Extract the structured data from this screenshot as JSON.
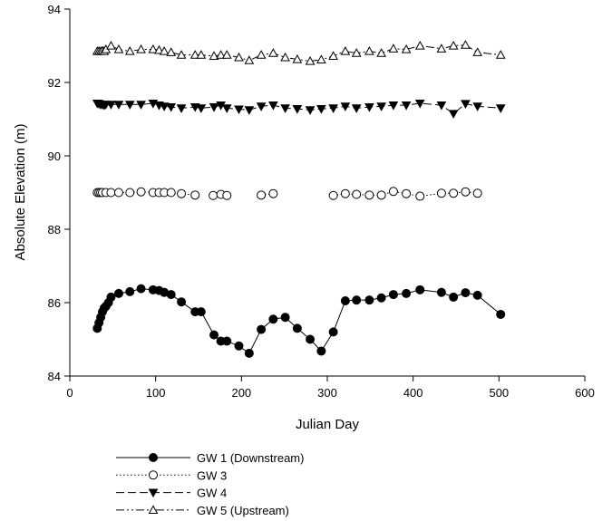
{
  "chart_data": {
    "type": "line",
    "x_label": "Julian Day",
    "y_label": "Absolute Elevation (m)",
    "xlim": [
      0,
      600
    ],
    "xticks": [
      0,
      100,
      200,
      300,
      400,
      500,
      600
    ],
    "ylim": [
      84,
      94
    ],
    "yticks": [
      84,
      86,
      88,
      90,
      92,
      94
    ],
    "series": [
      {
        "name": "GW 1 (Downstream)",
        "color": "#000000",
        "marker": "circle",
        "filled": true,
        "dash": "solid",
        "x": [
          32,
          34,
          36,
          38,
          40,
          42,
          45,
          48,
          57,
          70,
          83,
          97,
          104,
          110,
          118,
          130,
          146,
          153,
          168,
          176,
          183,
          197,
          209,
          223,
          237,
          251,
          265,
          280,
          293,
          307,
          321,
          334,
          349,
          363,
          377,
          392,
          408,
          433,
          447,
          461,
          475,
          502
        ],
        "values": [
          85.3,
          85.45,
          85.6,
          85.75,
          85.85,
          85.9,
          86.0,
          86.15,
          86.25,
          86.3,
          86.38,
          86.35,
          86.33,
          86.28,
          86.22,
          86.02,
          85.75,
          85.75,
          85.12,
          84.95,
          84.95,
          84.82,
          84.62,
          85.27,
          85.55,
          85.6,
          85.3,
          85.0,
          84.68,
          85.2,
          86.05,
          86.07,
          86.07,
          86.13,
          86.22,
          86.25,
          86.35,
          86.28,
          86.15,
          86.27,
          86.2,
          85.68
        ]
      },
      {
        "name": "GW 3",
        "color": "#000000",
        "marker": "circle",
        "filled": false,
        "dash": "dotted",
        "x": [
          32,
          34,
          36,
          38,
          42,
          48,
          57,
          70,
          83,
          97,
          104,
          110,
          118,
          130,
          146,
          153,
          167,
          176,
          183,
          197,
          209,
          223,
          237,
          251,
          265,
          280,
          293,
          307,
          321,
          334,
          349,
          363,
          377,
          392,
          408,
          433,
          447,
          461,
          475
        ],
        "values": [
          89.0,
          89.0,
          89.0,
          89.0,
          89.0,
          89.0,
          89.0,
          89.0,
          89.02,
          89.0,
          89.0,
          89.0,
          89.0,
          88.97,
          88.93,
          null,
          88.92,
          88.95,
          88.92,
          null,
          null,
          88.93,
          88.97,
          null,
          null,
          null,
          null,
          88.92,
          88.97,
          88.95,
          88.93,
          88.93,
          89.03,
          88.97,
          88.9,
          88.98,
          88.98,
          89.02,
          88.98
        ]
      },
      {
        "name": "GW 4",
        "color": "#000000",
        "marker": "triangle-down",
        "filled": true,
        "dash": "dashed",
        "x": [
          32,
          34,
          36,
          38,
          40,
          42,
          48,
          57,
          70,
          83,
          97,
          104,
          110,
          118,
          130,
          146,
          153,
          168,
          176,
          183,
          197,
          209,
          223,
          237,
          251,
          265,
          280,
          293,
          307,
          321,
          334,
          349,
          363,
          377,
          392,
          408,
          433,
          447,
          461,
          475,
          502
        ],
        "values": [
          91.43,
          91.42,
          91.4,
          91.4,
          91.38,
          91.4,
          91.4,
          91.4,
          91.4,
          91.4,
          91.43,
          91.38,
          91.35,
          91.33,
          91.3,
          91.33,
          91.3,
          91.33,
          91.38,
          91.3,
          91.27,
          91.25,
          91.35,
          91.38,
          91.3,
          91.28,
          91.25,
          91.28,
          91.3,
          91.35,
          91.3,
          91.33,
          91.35,
          91.38,
          91.38,
          91.43,
          91.38,
          91.15,
          91.42,
          91.35,
          91.3
        ]
      },
      {
        "name": "GW 5 (Upstream)",
        "color": "#000000",
        "marker": "triangle-up",
        "filled": false,
        "dash": "dashdotdot",
        "x": [
          32,
          34,
          36,
          38,
          40,
          42,
          48,
          57,
          70,
          83,
          97,
          104,
          110,
          118,
          130,
          146,
          153,
          168,
          176,
          183,
          197,
          209,
          223,
          237,
          251,
          265,
          280,
          293,
          307,
          321,
          334,
          349,
          363,
          377,
          392,
          408,
          433,
          447,
          461,
          475,
          502
        ],
        "values": [
          92.85,
          92.85,
          92.85,
          92.86,
          92.85,
          92.9,
          93.0,
          92.9,
          92.85,
          92.9,
          92.9,
          92.88,
          92.85,
          92.82,
          92.75,
          92.75,
          92.75,
          92.72,
          92.75,
          92.75,
          92.68,
          92.6,
          92.75,
          92.8,
          92.68,
          92.63,
          92.58,
          92.62,
          92.72,
          92.85,
          92.8,
          92.85,
          92.8,
          92.92,
          92.9,
          93.0,
          92.92,
          93.0,
          93.02,
          92.82,
          92.75
        ]
      }
    ]
  }
}
